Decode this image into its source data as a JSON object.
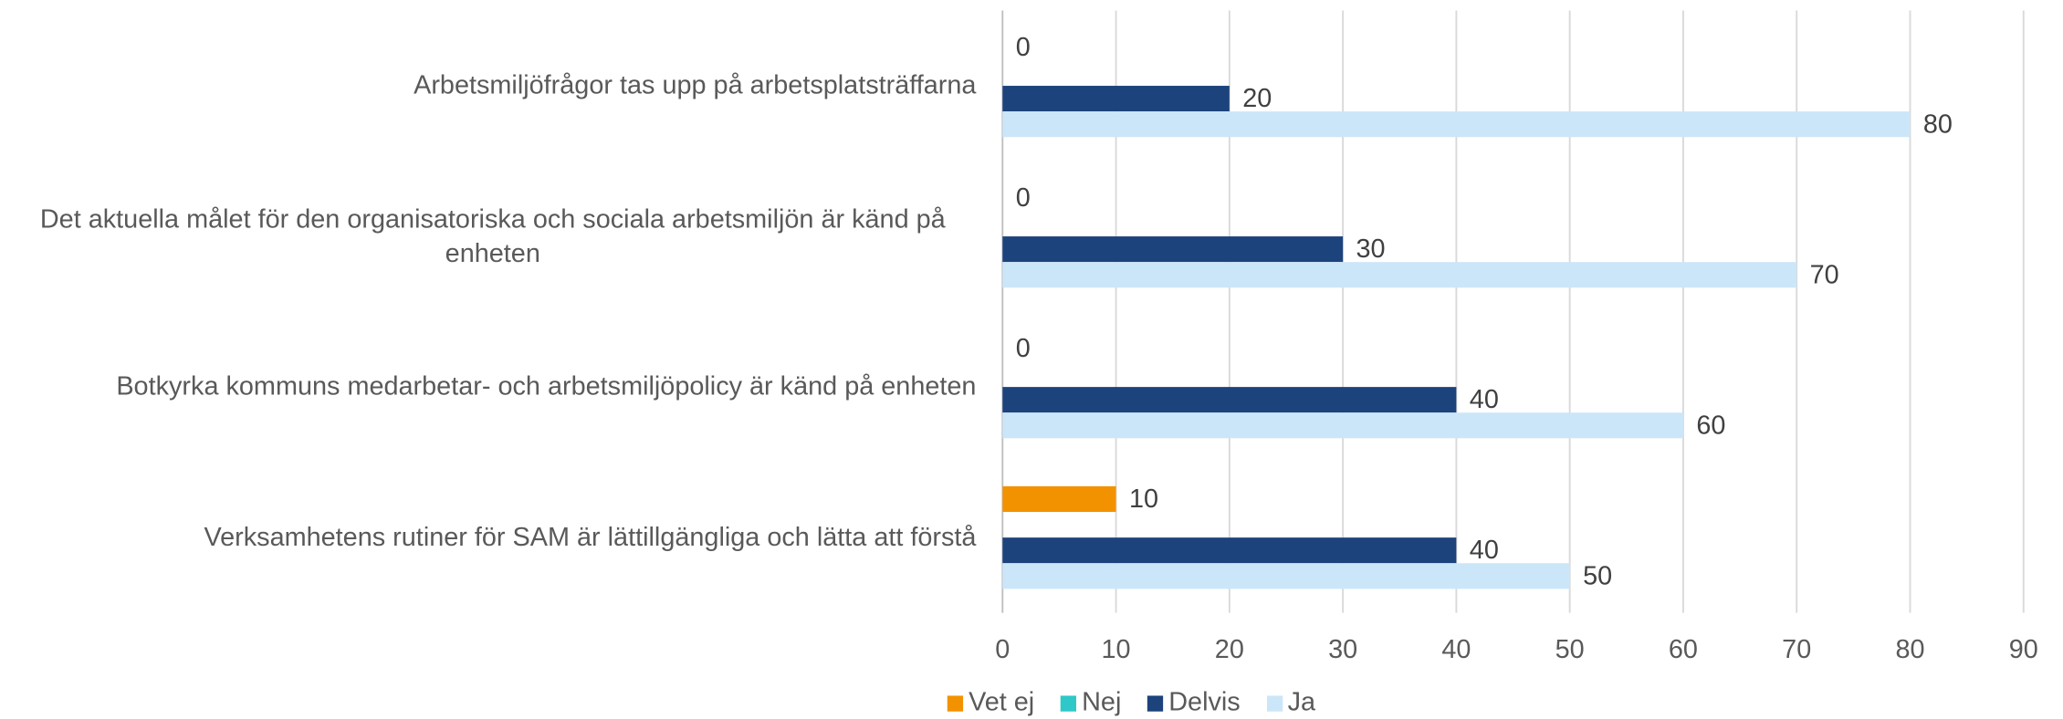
{
  "chart_data": {
    "type": "hbar",
    "categories": [
      "Arbetsmiljöfrågor tas upp på arbetsplatsträffarna",
      "Det aktuella målet för den organisatoriska och sociala arbetsmiljön är känd på enheten",
      "Botkyrka kommuns medarbetar- och arbetsmiljöpolicy är känd på enheten",
      "Verksamhetens rutiner för SAM är lättillgängliga och lätta att förstå"
    ],
    "series": [
      {
        "name": "Vet ej",
        "color": "#f39200",
        "values": [
          0,
          0,
          0,
          10
        ]
      },
      {
        "name": "Nej",
        "color": "#2ec8c8",
        "values": [
          null,
          null,
          null,
          null
        ]
      },
      {
        "name": "Delvis",
        "color": "#1c437c",
        "values": [
          20,
          30,
          40,
          40
        ]
      },
      {
        "name": "Ja",
        "color": "#cce6f9",
        "values": [
          80,
          70,
          60,
          50
        ]
      }
    ],
    "xlim": [
      0,
      90
    ],
    "xticks": [
      0,
      10,
      20,
      30,
      40,
      50,
      60,
      70,
      80,
      90
    ],
    "grid": true,
    "legend": "bottom"
  }
}
